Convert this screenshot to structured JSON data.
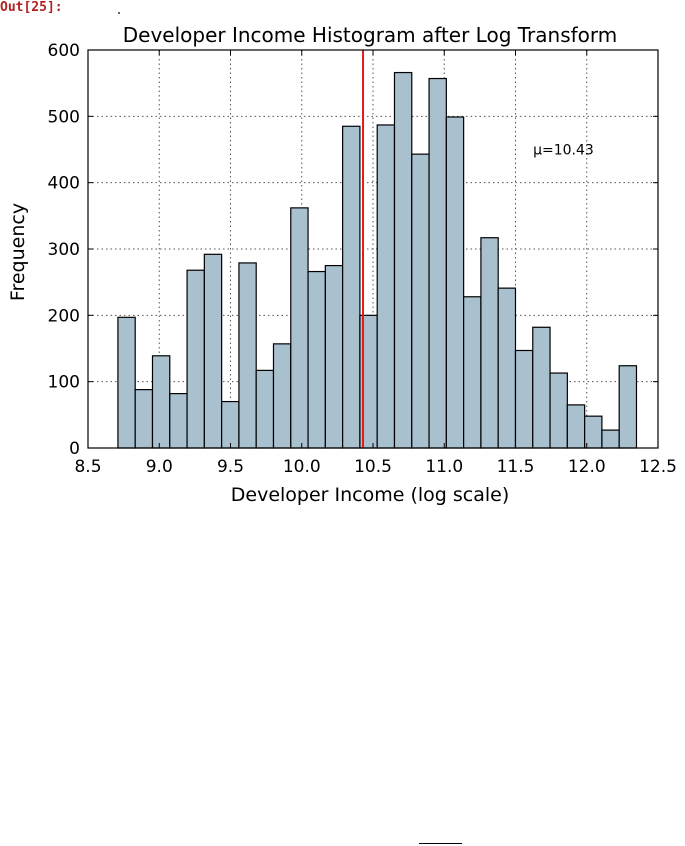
{
  "cell": {
    "out_label": "Out[25]:"
  },
  "chart_data": {
    "type": "bar",
    "title": "Developer Income Histogram after Log Transform",
    "xlabel": "Developer Income (log scale)",
    "ylabel": "Frequency",
    "xlim": [
      8.5,
      12.5
    ],
    "ylim": [
      0,
      600
    ],
    "xticks": [
      "8.5",
      "9.0",
      "9.5",
      "10.0",
      "10.5",
      "11.0",
      "11.5",
      "12.0",
      "12.5"
    ],
    "yticks": [
      "0",
      "100",
      "200",
      "300",
      "400",
      "500",
      "600"
    ],
    "grid": true,
    "bar_color": "#a9c1cf",
    "bar_edge_color": "#000000",
    "mean_line_color": "#e31a1c",
    "bins": {
      "start": 8.71,
      "width": 0.1213,
      "counts": [
        197,
        88,
        139,
        82,
        268,
        292,
        70,
        279,
        117,
        157,
        362,
        266,
        275,
        485,
        200,
        487,
        566,
        443,
        557,
        499,
        228,
        317,
        241,
        147,
        182,
        113,
        65,
        48,
        27,
        124
      ]
    },
    "mean": 10.43,
    "annotation": {
      "text": "μ=10.43",
      "x": 11.82,
      "y": 450
    }
  }
}
